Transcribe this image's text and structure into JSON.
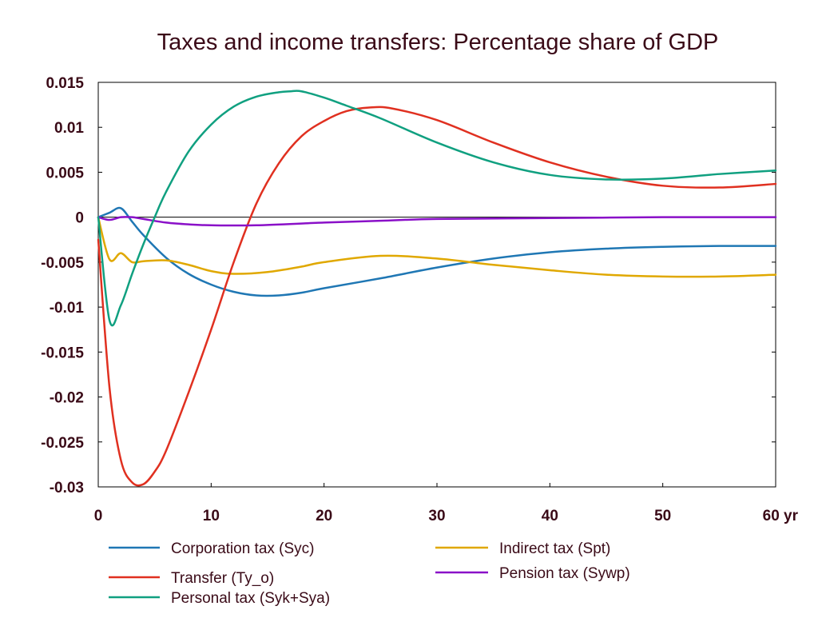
{
  "chart_data": {
    "type": "line",
    "title": "Taxes and income transfers: Percentage share of GDP",
    "xlabel": "",
    "ylabel": "",
    "xlim": [
      0,
      60
    ],
    "ylim": [
      -0.03,
      0.015
    ],
    "x_ticks": [
      0,
      10,
      20,
      30,
      40,
      50,
      60
    ],
    "x_tick_labels": [
      "0",
      "10",
      "20",
      "30",
      "40",
      "50",
      "60 yr"
    ],
    "y_ticks": [
      0.015,
      0.01,
      0.005,
      0,
      -0.005,
      -0.01,
      -0.015,
      -0.02,
      -0.025,
      -0.03
    ],
    "y_tick_labels": [
      "0.015",
      "0.01",
      "0.005",
      "0",
      "-0.005",
      "-0.01",
      "-0.015",
      "-0.02",
      "-0.025",
      "-0.03"
    ],
    "grid": false,
    "zero_line": true,
    "legend_position": "bottom",
    "series": [
      {
        "name": "Corporation tax (Syc)",
        "color": "#1f77b4",
        "points": [
          [
            0,
            0
          ],
          [
            1,
            0.0005
          ],
          [
            2,
            0.001
          ],
          [
            3,
            -0.0005
          ],
          [
            4,
            -0.002
          ],
          [
            6,
            -0.0045
          ],
          [
            8,
            -0.0063
          ],
          [
            10,
            -0.0075
          ],
          [
            12,
            -0.0083
          ],
          [
            14,
            -0.0087
          ],
          [
            16,
            -0.0087
          ],
          [
            18,
            -0.0084
          ],
          [
            20,
            -0.0079
          ],
          [
            25,
            -0.0068
          ],
          [
            30,
            -0.0056
          ],
          [
            35,
            -0.0046
          ],
          [
            40,
            -0.0039
          ],
          [
            45,
            -0.0035
          ],
          [
            50,
            -0.0033
          ],
          [
            55,
            -0.0032
          ],
          [
            60,
            -0.0032
          ]
        ]
      },
      {
        "name": "Indirect tax (Spt)",
        "color": "#e0a800",
        "points": [
          [
            0,
            0
          ],
          [
            1,
            -0.0047
          ],
          [
            2,
            -0.004
          ],
          [
            3,
            -0.005
          ],
          [
            4,
            -0.0049
          ],
          [
            6,
            -0.0048
          ],
          [
            8,
            -0.0053
          ],
          [
            10,
            -0.006
          ],
          [
            12,
            -0.0063
          ],
          [
            15,
            -0.0061
          ],
          [
            18,
            -0.0055
          ],
          [
            20,
            -0.005
          ],
          [
            25,
            -0.0043
          ],
          [
            30,
            -0.0046
          ],
          [
            35,
            -0.0053
          ],
          [
            40,
            -0.0059
          ],
          [
            45,
            -0.0064
          ],
          [
            50,
            -0.0066
          ],
          [
            55,
            -0.0066
          ],
          [
            60,
            -0.0064
          ]
        ]
      },
      {
        "name": "Transfer (Ty_o)",
        "color": "#e03020",
        "points": [
          [
            0,
            -0.0025
          ],
          [
            1,
            -0.019
          ],
          [
            2,
            -0.027
          ],
          [
            3,
            -0.0295
          ],
          [
            4,
            -0.0297
          ],
          [
            5,
            -0.0283
          ],
          [
            6,
            -0.026
          ],
          [
            8,
            -0.0195
          ],
          [
            10,
            -0.0125
          ],
          [
            12,
            -0.005
          ],
          [
            14,
            0.0015
          ],
          [
            16,
            0.006
          ],
          [
            18,
            0.009
          ],
          [
            20,
            0.0107
          ],
          [
            22,
            0.0118
          ],
          [
            24,
            0.0122
          ],
          [
            26,
            0.0121
          ],
          [
            30,
            0.0108
          ],
          [
            35,
            0.0083
          ],
          [
            40,
            0.0061
          ],
          [
            45,
            0.0045
          ],
          [
            50,
            0.0035
          ],
          [
            55,
            0.0033
          ],
          [
            60,
            0.0037
          ]
        ]
      },
      {
        "name": "Pension tax (Sywp)",
        "color": "#8a10c8",
        "points": [
          [
            0,
            0
          ],
          [
            1,
            -0.0003
          ],
          [
            2,
            0
          ],
          [
            3,
            0
          ],
          [
            4,
            -0.0002
          ],
          [
            6,
            -0.0006
          ],
          [
            8,
            -0.0008
          ],
          [
            10,
            -0.0009
          ],
          [
            14,
            -0.0009
          ],
          [
            20,
            -0.0006
          ],
          [
            25,
            -0.0004
          ],
          [
            30,
            -0.0002
          ],
          [
            40,
            -0.0001
          ],
          [
            50,
            0
          ],
          [
            60,
            0
          ]
        ]
      },
      {
        "name": "Personal tax (Syk+Sya)",
        "color": "#10a080",
        "points": [
          [
            0,
            0
          ],
          [
            1,
            -0.0115
          ],
          [
            2,
            -0.0098
          ],
          [
            3,
            -0.0063
          ],
          [
            4,
            -0.003
          ],
          [
            5,
            0
          ],
          [
            6,
            0.0028
          ],
          [
            8,
            0.0073
          ],
          [
            10,
            0.0103
          ],
          [
            12,
            0.0123
          ],
          [
            14,
            0.0134
          ],
          [
            16,
            0.0139
          ],
          [
            17,
            0.014
          ],
          [
            18,
            0.014
          ],
          [
            20,
            0.0133
          ],
          [
            22,
            0.0124
          ],
          [
            25,
            0.011
          ],
          [
            30,
            0.0083
          ],
          [
            35,
            0.0061
          ],
          [
            40,
            0.0047
          ],
          [
            45,
            0.0042
          ],
          [
            50,
            0.0043
          ],
          [
            55,
            0.0048
          ],
          [
            60,
            0.0052
          ]
        ]
      }
    ]
  },
  "legend": {
    "left": [
      {
        "label": "Corporation tax (Syc)",
        "color": "#1f77b4"
      },
      {
        "label": "Transfer (Ty_o)",
        "color": "#e03020"
      },
      {
        "label": "Personal tax (Syk+Sya)",
        "color": "#10a080"
      }
    ],
    "right": [
      {
        "label": "Indirect tax (Spt)",
        "color": "#e0a800"
      },
      {
        "label": "Pension tax (Sywp)",
        "color": "#8a10c8"
      }
    ]
  }
}
